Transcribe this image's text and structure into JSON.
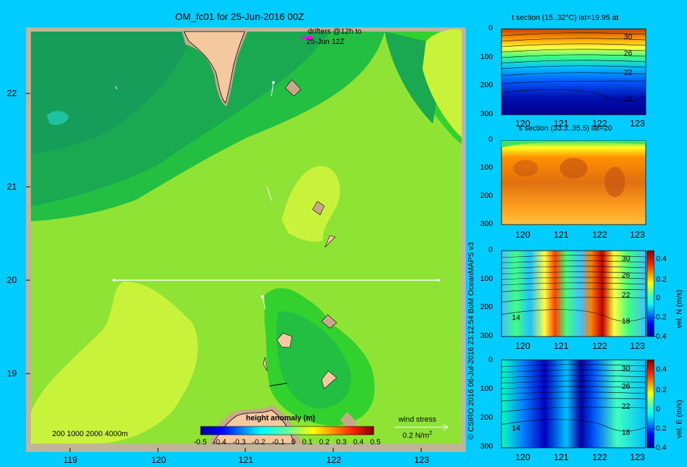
{
  "colors": {
    "background": "#00ccff",
    "frame": "#c0b49a",
    "land": "#f5c9a0",
    "shelf": "#c8a88a",
    "map_fill_levels": [
      "#169d5a",
      "#1aa850",
      "#22bf42",
      "#33d12d",
      "#8fe335",
      "#c9f23a"
    ]
  },
  "main_map": {
    "title": "OM_fc01 for 25-Jun-2016 00Z",
    "drifters_label_line1": "drifters @12h to",
    "drifters_label_line2": "25-Jun 12Z",
    "depth_legend": "200  1000  2000  4000m",
    "wind_label": "wind stress",
    "wind_unit": "0.2 N/m",
    "wind_unit_sup": "2",
    "colorbar_title": "height anomaly (m)",
    "colorbar_ticks": [
      "-0.5",
      "-0.4",
      "-0.3",
      "-0.2",
      "-0.1",
      "0",
      "0.1",
      "0.2",
      "0.3",
      "0.4",
      "0.5"
    ]
  },
  "credit_text": "© CSIRO 2016   06-Jul-2016 23:12:54 BoM OceanMAPS v3",
  "panels": [
    {
      "id": "t",
      "title": "t section (15..32°C) lat=19.95 at",
      "contour_labels": [
        "30",
        "26",
        "22",
        "18"
      ],
      "side_label": "",
      "colorbar_ticks": []
    },
    {
      "id": "s",
      "title": "s section (33.3..35.5) lat=20",
      "contour_labels": [],
      "side_label": "",
      "colorbar_ticks": []
    },
    {
      "id": "v",
      "title": "",
      "contour_labels": [
        "30",
        "26",
        "22",
        "18",
        "14"
      ],
      "side_label": "vel. N (m/s)",
      "colorbar_ticks": [
        "0.4",
        "0.2",
        "0",
        "-0.2",
        "-0.4"
      ]
    },
    {
      "id": "u",
      "title": "",
      "contour_labels": [
        "30",
        "26",
        "22",
        "18",
        "14"
      ],
      "side_label": "vel. E (m/s)",
      "colorbar_ticks": [
        "0.4",
        "0.2",
        "0",
        "-0.2",
        "-0.4"
      ]
    }
  ],
  "chart_data": [
    {
      "type": "heatmap",
      "title": "OM_fc01 for 25-Jun-2016 00Z",
      "variable": "height anomaly (m)",
      "xlim": [
        118.5,
        123.5
      ],
      "ylim": [
        18.3,
        22.7
      ],
      "x_ticks": [
        "119",
        "120",
        "121",
        "122",
        "123"
      ],
      "y_ticks": [
        "19",
        "20",
        "21",
        "22"
      ],
      "value_range": [
        -0.5,
        0.5
      ],
      "section_line": {
        "lat": 20,
        "lon_start": 119.5,
        "lon_end": 123.2
      }
    },
    {
      "type": "heatmap",
      "title": "t section (15..32°C) lat=19.95 at",
      "xlim": [
        119.5,
        123.2
      ],
      "ylim": [
        300,
        0
      ],
      "x_ticks": [
        "120",
        "121",
        "122",
        "123"
      ],
      "y_ticks": [
        "0",
        "100",
        "200",
        "300"
      ],
      "contour_labels": [
        30,
        26,
        22,
        18
      ]
    },
    {
      "type": "heatmap",
      "title": "s section (33.3..35.5) lat=20",
      "xlim": [
        119.5,
        123.2
      ],
      "ylim": [
        300,
        0
      ],
      "x_ticks": [
        "120",
        "121",
        "122",
        "123"
      ],
      "y_ticks": [
        "0",
        "100",
        "200",
        "300"
      ]
    },
    {
      "type": "heatmap",
      "title": "",
      "variable": "vel. N (m/s)",
      "xlim": [
        119.5,
        123.2
      ],
      "ylim": [
        300,
        0
      ],
      "x_ticks": [
        "120",
        "121",
        "122",
        "123"
      ],
      "y_ticks": [
        "0",
        "100",
        "200",
        "300"
      ],
      "value_range": [
        -0.4,
        0.4
      ],
      "contour_labels": [
        30,
        26,
        22,
        18,
        14
      ]
    },
    {
      "type": "heatmap",
      "title": "",
      "variable": "vel. E (m/s)",
      "xlim": [
        119.5,
        123.2
      ],
      "ylim": [
        300,
        0
      ],
      "x_ticks": [
        "120",
        "121",
        "122",
        "123"
      ],
      "y_ticks": [
        "0",
        "100",
        "200",
        "300"
      ],
      "value_range": [
        -0.4,
        0.4
      ],
      "contour_labels": [
        30,
        26,
        22,
        18,
        14
      ]
    }
  ]
}
